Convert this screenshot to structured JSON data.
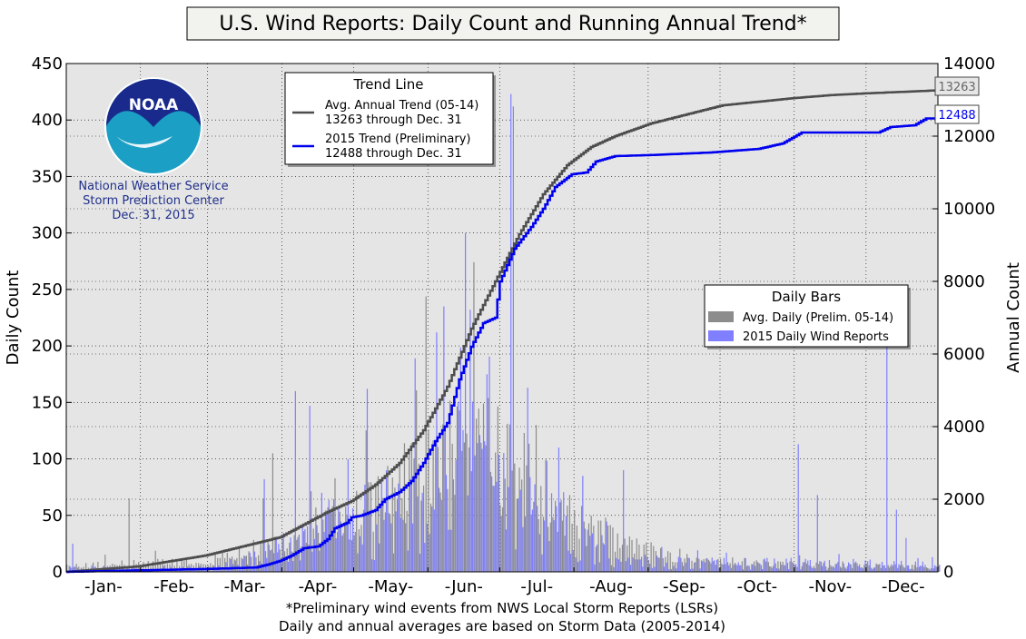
{
  "chart_data": {
    "type": "bar",
    "title": "U.S. Wind Reports: Daily Count and Running Annual Trend*",
    "ylabel_left": "Daily Count",
    "ylabel_right": "Annual Count",
    "ylim_left": [
      0,
      450
    ],
    "ylim_right": [
      0,
      14000
    ],
    "yticks_left": [
      "0",
      "50",
      "100",
      "150",
      "200",
      "250",
      "300",
      "350",
      "400",
      "450"
    ],
    "yticks_right": [
      "0",
      "2000",
      "4000",
      "6000",
      "8000",
      "10000",
      "12000",
      "14000"
    ],
    "month_labels": [
      "-Jan-",
      "-Feb-",
      "-Mar-",
      "-Apr-",
      "-May-",
      "-Jun-",
      "-Jul-",
      "-Aug-",
      "-Sep-",
      "-Oct-",
      "-Nov-",
      "-Dec-"
    ],
    "x_range_days": [
      1,
      365
    ],
    "grid": true,
    "footnote_1": "*Preliminary wind events from NWS Local Storm Reports (LSRs)",
    "footnote_2": "Daily and annual averages are based on Storm Data (2005-2014)",
    "logo": {
      "text": "NOAA",
      "line1": "National Weather Service",
      "line2": "Storm Prediction Center",
      "line3": "Dec. 31, 2015"
    },
    "legend_trend": {
      "title": "Trend Line",
      "placement": "top-center",
      "items": [
        {
          "line1": "Avg. Annual Trend (05-14)",
          "line2": "13263 through Dec. 31",
          "color": "#4d4d4d"
        },
        {
          "line1": "2015 Trend (Preliminary)",
          "line2": "12488 through Dec. 31",
          "color": "#0000ee"
        }
      ]
    },
    "legend_bars": {
      "title": "Daily Bars",
      "placement": "center-right",
      "items": [
        {
          "label": "Avg. Daily (Prelim. 05-14)",
          "color": "#8c8c8c"
        },
        {
          "label": "2015 Daily Wind Reports",
          "color": "#7f7fff"
        }
      ]
    },
    "end_labels": [
      {
        "text": "13263",
        "value": 13263,
        "color": "#666666"
      },
      {
        "text": "12488",
        "value": 12488,
        "color": "#0000ee"
      }
    ],
    "series": [
      {
        "name": "Avg. Annual Trend (05-14)",
        "kind": "cumulative-line",
        "color": "#4d4d4d",
        "points": [
          [
            1,
            0
          ],
          [
            31,
            150
          ],
          [
            59,
            450
          ],
          [
            90,
            950
          ],
          [
            110,
            1650
          ],
          [
            120,
            1950
          ],
          [
            130,
            2400
          ],
          [
            140,
            3000
          ],
          [
            150,
            3900
          ],
          [
            160,
            5100
          ],
          [
            170,
            6700
          ],
          [
            180,
            8000
          ],
          [
            190,
            9300
          ],
          [
            200,
            10400
          ],
          [
            210,
            11200
          ],
          [
            220,
            11700
          ],
          [
            230,
            12000
          ],
          [
            245,
            12350
          ],
          [
            260,
            12600
          ],
          [
            275,
            12850
          ],
          [
            290,
            12950
          ],
          [
            305,
            13050
          ],
          [
            320,
            13130
          ],
          [
            335,
            13180
          ],
          [
            350,
            13220
          ],
          [
            365,
            13263
          ]
        ]
      },
      {
        "name": "2015 Trend (Preliminary)",
        "kind": "cumulative-line",
        "color": "#0000ee",
        "points": [
          [
            1,
            0
          ],
          [
            60,
            80
          ],
          [
            80,
            120
          ],
          [
            85,
            200
          ],
          [
            90,
            300
          ],
          [
            95,
            450
          ],
          [
            100,
            650
          ],
          [
            106,
            700
          ],
          [
            110,
            900
          ],
          [
            113,
            1200
          ],
          [
            118,
            1350
          ],
          [
            120,
            1500
          ],
          [
            124,
            1550
          ],
          [
            130,
            1700
          ],
          [
            134,
            2000
          ],
          [
            140,
            2200
          ],
          [
            145,
            2500
          ],
          [
            150,
            3000
          ],
          [
            155,
            3600
          ],
          [
            160,
            4100
          ],
          [
            165,
            5300
          ],
          [
            170,
            6200
          ],
          [
            175,
            6850
          ],
          [
            180,
            7000
          ],
          [
            182,
            8000
          ],
          [
            188,
            8900
          ],
          [
            195,
            9500
          ],
          [
            200,
            10000
          ],
          [
            205,
            10600
          ],
          [
            212,
            10950
          ],
          [
            218,
            11000
          ],
          [
            222,
            11300
          ],
          [
            230,
            11450
          ],
          [
            245,
            11480
          ],
          [
            270,
            11550
          ],
          [
            290,
            11650
          ],
          [
            300,
            11800
          ],
          [
            308,
            12100
          ],
          [
            340,
            12100
          ],
          [
            345,
            12250
          ],
          [
            355,
            12300
          ],
          [
            360,
            12488
          ],
          [
            365,
            12488
          ]
        ]
      },
      {
        "name": "Avg. Daily (Prelim. 05-14)",
        "kind": "daily-bars",
        "color": "#8c8c8c",
        "envelope": [
          [
            1,
            5
          ],
          [
            60,
            10
          ],
          [
            80,
            18
          ],
          [
            90,
            25
          ],
          [
            110,
            40
          ],
          [
            130,
            60
          ],
          [
            150,
            100
          ],
          [
            165,
            120
          ],
          [
            175,
            110
          ],
          [
            190,
            95
          ],
          [
            205,
            60
          ],
          [
            220,
            35
          ],
          [
            240,
            20
          ],
          [
            270,
            10
          ],
          [
            300,
            7
          ],
          [
            365,
            4
          ]
        ],
        "peaks": [
          [
            27,
            65
          ],
          [
            83,
            65
          ],
          [
            87,
            105
          ],
          [
            105,
            57
          ],
          [
            166,
            107
          ],
          [
            176,
            112
          ],
          [
            197,
            130
          ],
          [
            226,
            48
          ]
        ]
      },
      {
        "name": "2015 Daily Wind Reports",
        "kind": "daily-bars",
        "color": "#7f7fff",
        "envelope": [
          [
            1,
            3
          ],
          [
            60,
            3
          ],
          [
            85,
            15
          ],
          [
            100,
            35
          ],
          [
            120,
            45
          ],
          [
            140,
            60
          ],
          [
            150,
            75
          ],
          [
            165,
            100
          ],
          [
            180,
            95
          ],
          [
            195,
            75
          ],
          [
            205,
            55
          ],
          [
            215,
            30
          ],
          [
            240,
            10
          ],
          [
            270,
            8
          ],
          [
            300,
            8
          ],
          [
            365,
            6
          ]
        ],
        "peaks": [
          [
            3,
            25
          ],
          [
            83,
            82
          ],
          [
            96,
            160
          ],
          [
            102,
            147
          ],
          [
            107,
            70
          ],
          [
            126,
            162
          ],
          [
            134,
            90
          ],
          [
            146,
            189
          ],
          [
            155,
            212
          ],
          [
            158,
            235
          ],
          [
            167,
            300
          ],
          [
            169,
            232
          ],
          [
            186,
            423
          ],
          [
            187,
            412
          ],
          [
            193,
            163
          ],
          [
            206,
            110
          ],
          [
            216,
            85
          ],
          [
            233,
            90
          ],
          [
            306,
            113
          ],
          [
            314,
            68
          ],
          [
            343,
            211
          ],
          [
            347,
            55
          ],
          [
            351,
            30
          ]
        ]
      }
    ]
  }
}
